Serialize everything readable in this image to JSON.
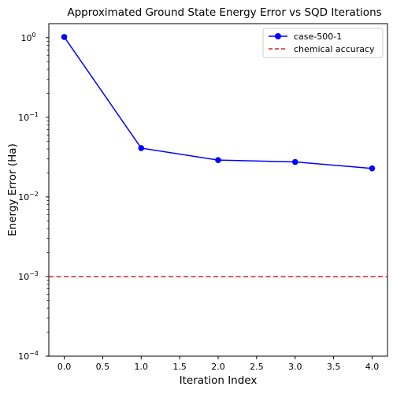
{
  "chart_data": {
    "type": "line",
    "title": "Approximated Ground State Energy Error vs SQD Iterations",
    "xlabel": "Iteration Index",
    "ylabel": "Energy Error (Ha)",
    "xlim": [
      -0.2,
      4.2
    ],
    "ylim": [
      0.0001,
      1.5
    ],
    "yscale": "log",
    "x_ticks": [
      0.0,
      0.5,
      1.0,
      1.5,
      2.0,
      2.5,
      3.0,
      3.5,
      4.0
    ],
    "x_tick_labels": [
      "0.0",
      "0.5",
      "1.0",
      "1.5",
      "2.0",
      "2.5",
      "3.0",
      "3.5",
      "4.0"
    ],
    "y_ticks": [
      0.0001,
      0.001,
      0.01,
      0.1,
      1
    ],
    "y_tick_labels": [
      {
        "base": "10",
        "exp": "−4"
      },
      {
        "base": "10",
        "exp": "−3"
      },
      {
        "base": "10",
        "exp": "−2"
      },
      {
        "base": "10",
        "exp": "−1"
      },
      {
        "base": "10",
        "exp": "0"
      }
    ],
    "grid": false,
    "legend_position": "top-right",
    "series": [
      {
        "name": "case-500-1",
        "color": "#0000ff",
        "marker": "circle",
        "x": [
          0,
          1,
          2,
          3,
          4
        ],
        "values": [
          1.02,
          0.041,
          0.029,
          0.0275,
          0.0228
        ]
      }
    ],
    "reference_lines": [
      {
        "name": "chemical accuracy",
        "y": 0.001,
        "color": "#d62728",
        "style": "dashed"
      }
    ]
  }
}
